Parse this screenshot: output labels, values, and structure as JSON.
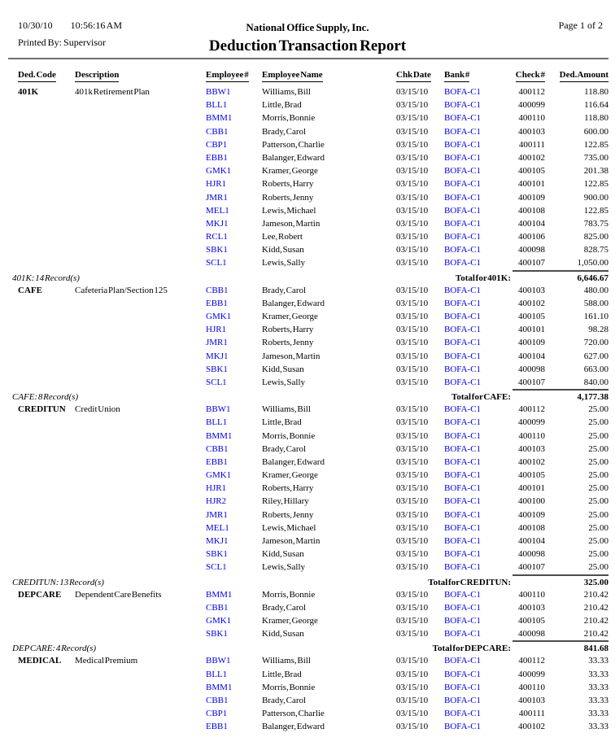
{
  "header": {
    "date": "10/30/10",
    "time": "10:56:16 AM",
    "printed_by_label": "Printed By:",
    "printed_by": "Supervisor",
    "company": "National Office Supply, Inc.",
    "title": "Deduction Transaction Report",
    "page": "Page 1 of 2"
  },
  "colors": {
    "link_blue": "#0000e6",
    "rule_gray": "#6e6e6e"
  },
  "table": {
    "columns": [
      "Ded. Code",
      "Description",
      "Employee #",
      "Employee Name",
      "Chk Date",
      "Bank #",
      "Check #",
      "Ded. Amount"
    ],
    "row_fields": [
      "employee_number",
      "employee_name",
      "chk_date",
      "bank_number",
      "check_number",
      "ded_amount"
    ],
    "groups": [
      {
        "code": "401K",
        "description": "401k Retirement Plan",
        "rows": [
          [
            "BBW1",
            "Williams, Bill",
            "03/15/10",
            "BOFA-C1",
            "400112",
            "118.80"
          ],
          [
            "BLL1",
            "Little, Brad",
            "03/15/10",
            "BOFA-C1",
            "400099",
            "116.64"
          ],
          [
            "BMM1",
            "Morris, Bonnie",
            "03/15/10",
            "BOFA-C1",
            "400110",
            "118.80"
          ],
          [
            "CBB1",
            "Brady, Carol",
            "03/15/10",
            "BOFA-C1",
            "400103",
            "600.00"
          ],
          [
            "CBP1",
            "Patterson, Charlie",
            "03/15/10",
            "BOFA-C1",
            "400111",
            "122.85"
          ],
          [
            "EBB1",
            "Balanger, Edward",
            "03/15/10",
            "BOFA-C1",
            "400102",
            "735.00"
          ],
          [
            "GMK1",
            "Kramer, George",
            "03/15/10",
            "BOFA-C1",
            "400105",
            "201.38"
          ],
          [
            "HJR1",
            "Roberts, Harry",
            "03/15/10",
            "BOFA-C1",
            "400101",
            "122.85"
          ],
          [
            "JMR1",
            "Roberts, Jenny",
            "03/15/10",
            "BOFA-C1",
            "400109",
            "900.00"
          ],
          [
            "MEL1",
            "Lewis, Michael",
            "03/15/10",
            "BOFA-C1",
            "400108",
            "122.85"
          ],
          [
            "MKJ1",
            "Jameson, Martin",
            "03/15/10",
            "BOFA-C1",
            "400104",
            "783.75"
          ],
          [
            "RCL1",
            "Lee, Robert",
            "03/15/10",
            "BOFA-C1",
            "400106",
            "825.00"
          ],
          [
            "SBK1",
            "Kidd, Susan",
            "03/15/10",
            "BOFA-C1",
            "400098",
            "828.75"
          ],
          [
            "SCL1",
            "Lewis, Sally",
            "03/15/10",
            "BOFA-C1",
            "400107",
            "1,050.00"
          ]
        ],
        "footer": "401K: 14 Record(s)",
        "total_label": "Total for 401K:",
        "total": "6,646.67"
      },
      {
        "code": "CAFE",
        "description": "Cafeteria Plan/Section 125",
        "rows": [
          [
            "CBB1",
            "Brady, Carol",
            "03/15/10",
            "BOFA-C1",
            "400103",
            "480.00"
          ],
          [
            "EBB1",
            "Balanger, Edward",
            "03/15/10",
            "BOFA-C1",
            "400102",
            "588.00"
          ],
          [
            "GMK1",
            "Kramer, George",
            "03/15/10",
            "BOFA-C1",
            "400105",
            "161.10"
          ],
          [
            "HJR1",
            "Roberts, Harry",
            "03/15/10",
            "BOFA-C1",
            "400101",
            "98.28"
          ],
          [
            "JMR1",
            "Roberts, Jenny",
            "03/15/10",
            "BOFA-C1",
            "400109",
            "720.00"
          ],
          [
            "MKJ1",
            "Jameson, Martin",
            "03/15/10",
            "BOFA-C1",
            "400104",
            "627.00"
          ],
          [
            "SBK1",
            "Kidd, Susan",
            "03/15/10",
            "BOFA-C1",
            "400098",
            "663.00"
          ],
          [
            "SCL1",
            "Lewis, Sally",
            "03/15/10",
            "BOFA-C1",
            "400107",
            "840.00"
          ]
        ],
        "footer": "CAFE: 8 Record(s)",
        "total_label": "Total for CAFE:",
        "total": "4,177.38"
      },
      {
        "code": "CREDITUN",
        "description": "Credit Union",
        "rows": [
          [
            "BBW1",
            "Williams, Bill",
            "03/15/10",
            "BOFA-C1",
            "400112",
            "25.00"
          ],
          [
            "BLL1",
            "Little, Brad",
            "03/15/10",
            "BOFA-C1",
            "400099",
            "25.00"
          ],
          [
            "BMM1",
            "Morris, Bonnie",
            "03/15/10",
            "BOFA-C1",
            "400110",
            "25.00"
          ],
          [
            "CBB1",
            "Brady, Carol",
            "03/15/10",
            "BOFA-C1",
            "400103",
            "25.00"
          ],
          [
            "EBB1",
            "Balanger, Edward",
            "03/15/10",
            "BOFA-C1",
            "400102",
            "25.00"
          ],
          [
            "GMK1",
            "Kramer, George",
            "03/15/10",
            "BOFA-C1",
            "400105",
            "25.00"
          ],
          [
            "HJR1",
            "Roberts, Harry",
            "03/15/10",
            "BOFA-C1",
            "400101",
            "25.00"
          ],
          [
            "HJR2",
            "Riley, Hillary",
            "03/15/10",
            "BOFA-C1",
            "400100",
            "25.00"
          ],
          [
            "JMR1",
            "Roberts, Jenny",
            "03/15/10",
            "BOFA-C1",
            "400109",
            "25.00"
          ],
          [
            "MEL1",
            "Lewis, Michael",
            "03/15/10",
            "BOFA-C1",
            "400108",
            "25.00"
          ],
          [
            "MKJ1",
            "Jameson, Martin",
            "03/15/10",
            "BOFA-C1",
            "400104",
            "25.00"
          ],
          [
            "SBK1",
            "Kidd, Susan",
            "03/15/10",
            "BOFA-C1",
            "400098",
            "25.00"
          ],
          [
            "SCL1",
            "Lewis, Sally",
            "03/15/10",
            "BOFA-C1",
            "400107",
            "25.00"
          ]
        ],
        "footer": "CREDITUN: 13 Record(s)",
        "total_label": "Total for CREDITUN:",
        "total": "325.00"
      },
      {
        "code": "DEP CARE",
        "description": "Dependent Care Benefits",
        "rows": [
          [
            "BMM1",
            "Morris, Bonnie",
            "03/15/10",
            "BOFA-C1",
            "400110",
            "210.42"
          ],
          [
            "CBB1",
            "Brady, Carol",
            "03/15/10",
            "BOFA-C1",
            "400103",
            "210.42"
          ],
          [
            "GMK1",
            "Kramer, George",
            "03/15/10",
            "BOFA-C1",
            "400105",
            "210.42"
          ],
          [
            "SBK1",
            "Kidd, Susan",
            "03/15/10",
            "BOFA-C1",
            "400098",
            "210.42"
          ]
        ],
        "footer": "DEP CARE: 4 Record(s)",
        "total_label": "Total for DEP CARE:",
        "total": "841.68"
      },
      {
        "code": "MEDICAL",
        "description": "Medical Premium",
        "rows": [
          [
            "BBW1",
            "Williams, Bill",
            "03/15/10",
            "BOFA-C1",
            "400112",
            "33.33"
          ],
          [
            "BLL1",
            "Little, Brad",
            "03/15/10",
            "BOFA-C1",
            "400099",
            "33.33"
          ],
          [
            "BMM1",
            "Morris, Bonnie",
            "03/15/10",
            "BOFA-C1",
            "400110",
            "33.33"
          ],
          [
            "CBB1",
            "Brady, Carol",
            "03/15/10",
            "BOFA-C1",
            "400103",
            "33.33"
          ],
          [
            "CBP1",
            "Patterson, Charlie",
            "03/15/10",
            "BOFA-C1",
            "400111",
            "33.33"
          ],
          [
            "EBB1",
            "Balanger, Edward",
            "03/15/10",
            "BOFA-C1",
            "400102",
            "33.33"
          ]
        ],
        "footer": null,
        "total_label": null,
        "total": null
      }
    ]
  }
}
